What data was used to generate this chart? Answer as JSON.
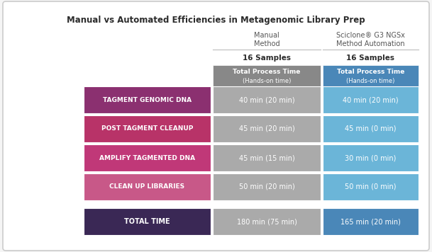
{
  "title": "Manual vs Automated Efficiencies in Metagenomic Library Prep",
  "col1_header_line1": "Manual",
  "col1_header_line2": "Method",
  "col2_header_line1": "Sciclone® G3 NGSx",
  "col2_header_line2": "Method Automation",
  "col1_subheader": "16 Samples",
  "col2_subheader": "16 Samples",
  "col1_box_line1": "Total Process Time",
  "col1_box_line2": "(Hands-on time)",
  "col2_box_line1": "Total Process Time",
  "col2_box_line2": "(Hands-on time)",
  "rows": [
    {
      "label": "TAGMENT GENOMIC DNA",
      "col1": "40 min (20 min)",
      "col2": "40 min (20 min)",
      "row_color": "#8B3070"
    },
    {
      "label": "POST TAGMENT CLEANUP",
      "col1": "45 min (20 min)",
      "col2": "45 min (0 min)",
      "row_color": "#B83368"
    },
    {
      "label": "AMPLIFY TAGMENTED DNA",
      "col1": "45 min (15 min)",
      "col2": "30 min (0 min)",
      "row_color": "#C03878"
    },
    {
      "label": "CLEAN UP LIBRARIES",
      "col1": "50 min (20 min)",
      "col2": "50 min (0 min)",
      "row_color": "#C85888"
    }
  ],
  "total_row": {
    "label": "TOTAL TIME",
    "col1": "180 min (75 min)",
    "col2": "165 min (20 min)",
    "row_color": "#3A2855"
  },
  "col1_header_color": "#888888",
  "col2_header_color": "#4A87B8",
  "col1_data_color": "#AAAAAA",
  "col2_data_color": "#6BB5D8",
  "col1_total_color": "#AAAAAA",
  "col2_total_color": "#4A87B8",
  "bg_color": "#F5F5F5",
  "border_color": "#CCCCCC",
  "white": "#FFFFFF"
}
